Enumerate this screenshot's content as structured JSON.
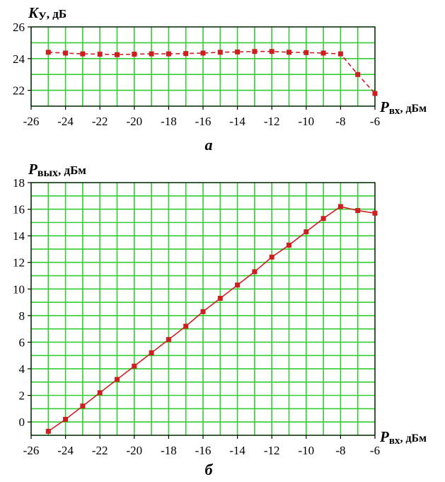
{
  "chart_data": [
    {
      "type": "line",
      "panel_label": "а",
      "ylabel_var": "K",
      "ylabel_sub": "У",
      "ylabel_unit": ", дБ",
      "xlabel_var": "P",
      "xlabel_sub": "вх",
      "xlabel_unit": ", дБм",
      "xlim": [
        -26,
        -6
      ],
      "ylim": [
        21,
        26
      ],
      "xticks": [
        -26,
        -24,
        -22,
        -20,
        -18,
        -16,
        -14,
        -12,
        -10,
        -8,
        -6
      ],
      "yticks": [
        22,
        24,
        26
      ],
      "line_style": "dashed",
      "line_color": "#cc2020",
      "marker": "square",
      "series": [
        {
          "x": [
            -25,
            -24,
            -23,
            -22,
            -21,
            -20,
            -19,
            -18,
            -17,
            -16,
            -15,
            -14,
            -13,
            -12,
            -11,
            -10,
            -9,
            -8,
            -7,
            -6
          ],
          "y": [
            24.4,
            24.35,
            24.3,
            24.28,
            24.25,
            24.28,
            24.3,
            24.3,
            24.32,
            24.35,
            24.4,
            24.42,
            24.45,
            24.45,
            24.4,
            24.38,
            24.35,
            24.3,
            23.0,
            21.8
          ]
        }
      ]
    },
    {
      "type": "line",
      "panel_label": "б",
      "ylabel_var": "P",
      "ylabel_sub": "вых",
      "ylabel_unit": ", дБм",
      "xlabel_var": "P",
      "xlabel_sub": "вх",
      "xlabel_unit": ", дБм",
      "xlim": [
        -26,
        -6
      ],
      "ylim": [
        -1,
        18
      ],
      "xticks": [
        -26,
        -24,
        -22,
        -20,
        -18,
        -16,
        -14,
        -12,
        -10,
        -8,
        -6
      ],
      "yticks": [
        0,
        2,
        4,
        6,
        8,
        10,
        12,
        14,
        16,
        18
      ],
      "line_style": "solid",
      "line_color": "#cc2020",
      "marker": "square",
      "series": [
        {
          "x": [
            -25,
            -24,
            -23,
            -22,
            -21,
            -20,
            -19,
            -18,
            -17,
            -16,
            -15,
            -14,
            -13,
            -12,
            -11,
            -10,
            -9,
            -8,
            -7,
            -6
          ],
          "y": [
            -0.7,
            0.2,
            1.2,
            2.2,
            3.2,
            4.2,
            5.2,
            6.2,
            7.2,
            8.3,
            9.3,
            10.3,
            11.3,
            12.4,
            13.3,
            14.3,
            15.3,
            16.2,
            15.9,
            15.7
          ]
        }
      ]
    }
  ]
}
